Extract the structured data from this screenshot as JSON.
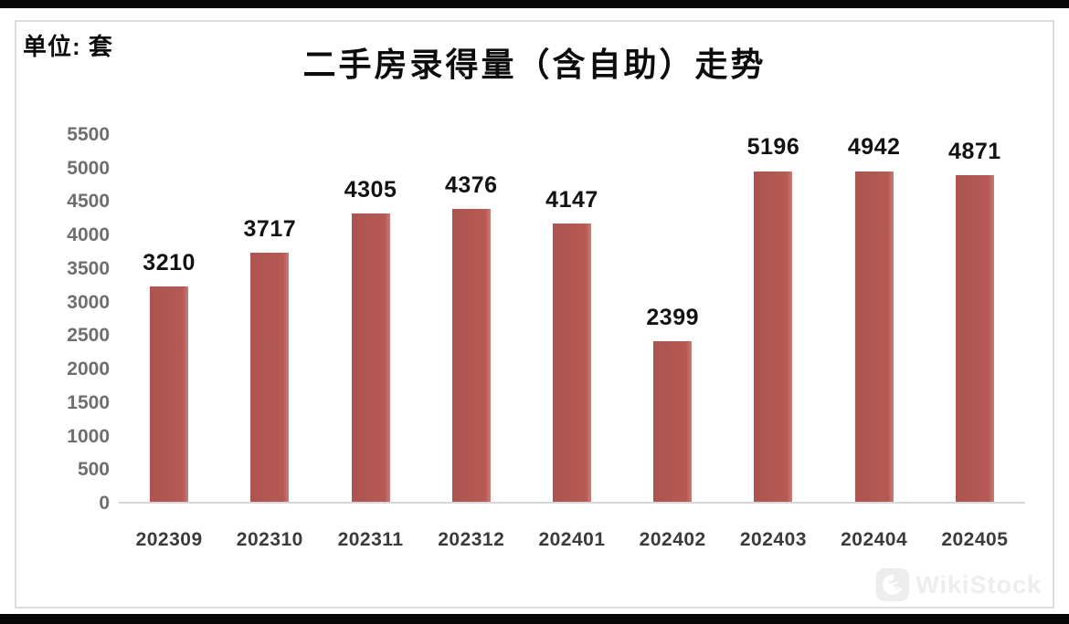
{
  "page": {
    "unit_label": "单位: 套",
    "watermark": "WikiStock"
  },
  "chart_data": {
    "type": "bar",
    "title": "二手房录得量（含自助）走势",
    "categories": [
      "202309",
      "202310",
      "202311",
      "202312",
      "202401",
      "202402",
      "202403",
      "202404",
      "202405"
    ],
    "values": [
      3210,
      3717,
      4305,
      4376,
      4147,
      2399,
      5196,
      4942,
      4871
    ],
    "xlabel": "",
    "ylabel": "",
    "unit": "套",
    "ylim": [
      0,
      5500
    ],
    "ytick_step": 500,
    "grid": false,
    "legend_position": "none",
    "data_labels": true,
    "bar_color": "#b25752",
    "axis_line_color": "#d6d6d6",
    "ytick_color": "#6e6e6e",
    "xtick_color": "#3b3b3b"
  }
}
